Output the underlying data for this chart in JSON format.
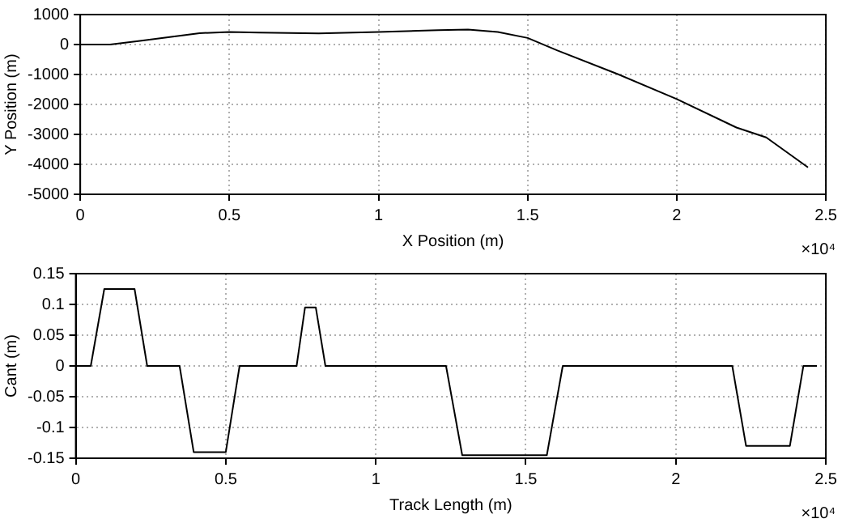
{
  "chart_data": [
    {
      "type": "line",
      "xlabel": "X Position (m)",
      "ylabel": "Y Position (m)",
      "annotations": [
        "×10⁴"
      ],
      "x": [
        0,
        0.1,
        0.2,
        0.3,
        0.4,
        0.5,
        0.6,
        0.8,
        1.0,
        1.2,
        1.3,
        1.4,
        1.5,
        1.6,
        1.8,
        2.0,
        2.2,
        2.3,
        2.44
      ],
      "series": [
        {
          "color": "#000000",
          "values": [
            0,
            0,
            120,
            250,
            380,
            420,
            400,
            370,
            420,
            480,
            500,
            420,
            220,
            -200,
            -980,
            -1820,
            -2770,
            -3100,
            -4100
          ]
        }
      ],
      "xlim": [
        0,
        2.5
      ],
      "xticks": [
        0,
        0.5,
        1,
        1.5,
        2,
        2.5
      ],
      "ylim": [
        -5000,
        1000
      ],
      "yticks": [
        -5000,
        -4000,
        -3000,
        -2000,
        -1000,
        0,
        1000
      ],
      "grid": true,
      "legend": false,
      "marker": "none",
      "line_style": "solid"
    },
    {
      "type": "line",
      "xlabel": "Track Length (m)",
      "ylabel": "Cant (m)",
      "annotations": [
        "×10⁴"
      ],
      "x": [
        0,
        0.05,
        0.095,
        0.196,
        0.238,
        0.346,
        0.393,
        0.5,
        0.546,
        0.736,
        0.764,
        0.8,
        0.832,
        1.234,
        1.288,
        1.57,
        1.623,
        2.188,
        2.234,
        2.38,
        2.425,
        2.47
      ],
      "series": [
        {
          "color": "#000000",
          "values": [
            0,
            0,
            0.125,
            0.125,
            0,
            0,
            -0.14,
            -0.14,
            0,
            0,
            0.095,
            0.095,
            0,
            0,
            -0.145,
            -0.145,
            0,
            0,
            -0.13,
            -0.13,
            0,
            0
          ]
        }
      ],
      "xlim": [
        0,
        2.5
      ],
      "xticks": [
        0,
        0.5,
        1,
        1.5,
        2,
        2.5
      ],
      "ylim": [
        -0.15,
        0.15
      ],
      "yticks": [
        -0.15,
        -0.1,
        -0.05,
        0,
        0.05,
        0.1,
        0.15
      ],
      "grid": true,
      "legend": false,
      "marker": "none",
      "line_style": "solid"
    }
  ]
}
